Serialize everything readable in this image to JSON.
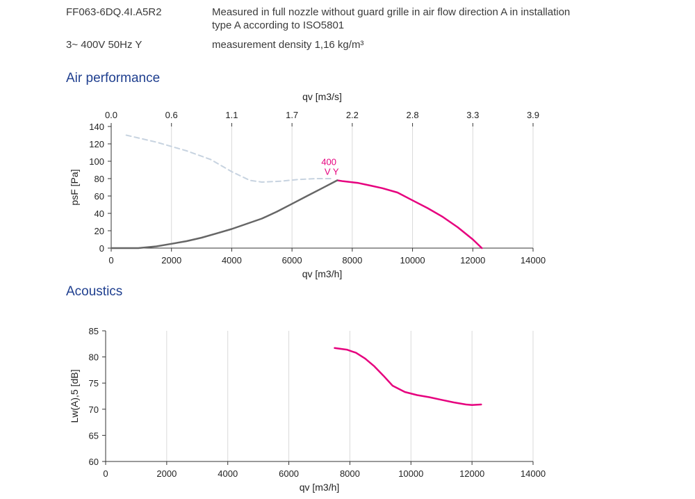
{
  "header": {
    "model": "FF063-6DQ.4I.A5R2",
    "description_line1": "Measured in full nozzle without guard grille in air flow direction A in installation",
    "description_line2": "type A according to ISO5801",
    "supply": "3~ 400V 50Hz Y",
    "density": "measurement density 1,16 kg/m³"
  },
  "sections": {
    "air_title": "Air performance",
    "acoustics_title": "Acoustics"
  },
  "chart_data": [
    {
      "type": "line",
      "title": "Air performance",
      "xlabel": "qv [m3/h]",
      "x2label": "qv [m3/s]",
      "ylabel": "psF [Pa]",
      "xlim": [
        0,
        14000
      ],
      "ylim": [
        0,
        140
      ],
      "xticks": [
        "0",
        "2000",
        "4000",
        "6000",
        "8000",
        "10000",
        "12000",
        "14000"
      ],
      "x2ticks": [
        "0.0",
        "0.6",
        "1.1",
        "1.7",
        "2.2",
        "2.8",
        "3.3",
        "3.9"
      ],
      "yticks": [
        "0",
        "20",
        "40",
        "60",
        "80",
        "100",
        "120",
        "140"
      ],
      "grid": "vertical",
      "annotation": [
        "400",
        "V Y"
      ],
      "series": [
        {
          "role": "operating-range",
          "color": "#e6007e",
          "style": "solid",
          "x": [
            7500,
            7700,
            8200,
            8600,
            9000,
            9500,
            10000,
            10500,
            11000,
            11500,
            12000,
            12300
          ],
          "y": [
            78,
            77,
            75,
            72,
            69,
            64,
            55,
            46,
            36,
            24,
            10,
            0
          ]
        },
        {
          "role": "below-range",
          "color": "#666666",
          "style": "solid",
          "x": [
            0,
            900,
            1500,
            2000,
            2500,
            3000,
            3500,
            4000,
            4500,
            5000,
            5500,
            6000,
            6500,
            7000,
            7500
          ],
          "y": [
            0,
            0,
            2,
            5,
            8,
            12,
            17,
            22,
            28,
            34,
            42,
            51,
            60,
            69,
            78
          ]
        },
        {
          "role": "stall-region",
          "color": "#c7d3e0",
          "style": "dashed",
          "x": [
            500,
            1500,
            2500,
            3300,
            4000,
            4600,
            5000,
            5600,
            6200,
            6800,
            7300
          ],
          "y": [
            130,
            122,
            112,
            102,
            88,
            78,
            76,
            77,
            79,
            80,
            80
          ]
        }
      ]
    },
    {
      "type": "line",
      "title": "Acoustics",
      "xlabel": "qv [m3/h]",
      "ylabel": "Lw(A),5 [dB]",
      "xlim": [
        0,
        14000
      ],
      "ylim": [
        60,
        85
      ],
      "xticks": [
        "0",
        "2000",
        "4000",
        "6000",
        "8000",
        "10000",
        "12000",
        "14000"
      ],
      "yticks": [
        "60",
        "65",
        "70",
        "75",
        "80",
        "85"
      ],
      "grid": "vertical",
      "series": [
        {
          "role": "sound-power",
          "color": "#e6007e",
          "style": "solid",
          "x": [
            7500,
            7900,
            8200,
            8500,
            8800,
            9100,
            9400,
            9800,
            10200,
            10600,
            11000,
            11400,
            11800,
            12000,
            12300
          ],
          "y": [
            81.7,
            81.4,
            80.8,
            79.7,
            78.2,
            76.4,
            74.5,
            73.3,
            72.7,
            72.3,
            71.8,
            71.3,
            70.9,
            70.8,
            70.9
          ]
        }
      ]
    }
  ]
}
